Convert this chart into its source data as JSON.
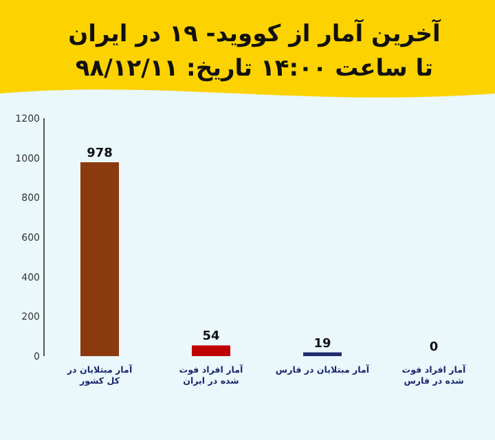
{
  "chart_data": {
    "type": "bar",
    "title": "آخرین آمار از کووید- ۱۹ در ایران",
    "subtitle": "تا ساعت ۱۴:۰۰ تاریخ: ۹۸/۱۲/۱۱",
    "categories": [
      "آمار مبتلایان در کل کشور",
      "آمار افراد فوت شده در ایران",
      "آمار مبتلایان در فارس",
      "آمار افراد فوت شده در فارس"
    ],
    "values": [
      978,
      54,
      19,
      0
    ],
    "colors": [
      "#8b3a0f",
      "#c00000",
      "#1f2d6b",
      "#1f2d6b"
    ],
    "ylim": [
      0,
      1200
    ],
    "yticks": [
      0,
      200,
      400,
      600,
      800,
      1000,
      1200
    ],
    "data_labels": true,
    "grid": false
  }
}
